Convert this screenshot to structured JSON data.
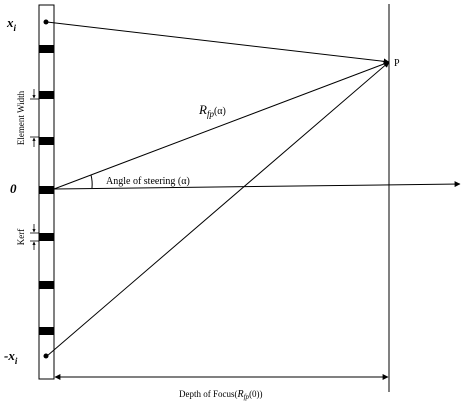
{
  "labels": {
    "x_top_base": "x",
    "x_top_sub": "i",
    "x_bottom_prefix": "-",
    "x_bottom_base": "x",
    "x_bottom_sub": "i",
    "origin": "0",
    "point": "P",
    "element_width": "Element Width",
    "kerf": "Kerf",
    "steering_angle": "Angle of steering (α)",
    "r_base": "R",
    "r_sub": "fp",
    "r_arg": "(α)",
    "depth_prefix": "Depth of Focus(",
    "depth_base": "R",
    "depth_sub": "fp",
    "depth_suffix": "(0))"
  },
  "colors": {
    "stroke": "#000000",
    "element_fill": "#000000",
    "background": "#ffffff"
  }
}
